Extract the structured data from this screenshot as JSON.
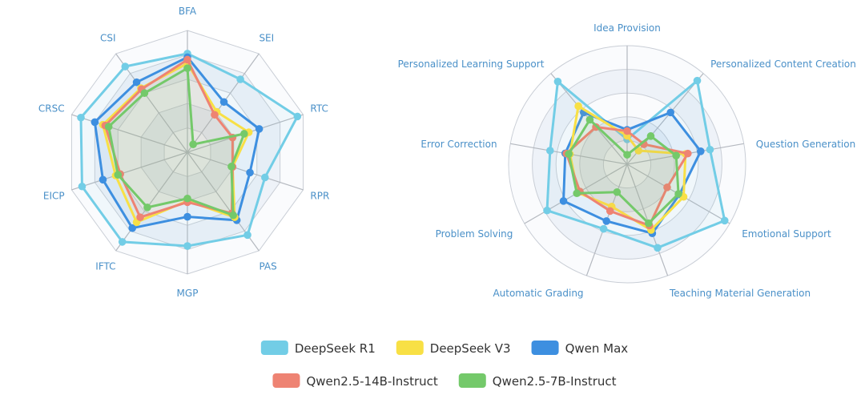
{
  "legend": [
    {
      "name": "DeepSeek R1",
      "color": "#72cde6"
    },
    {
      "name": "DeepSeek V3",
      "color": "#f8e045"
    },
    {
      "name": "Qwen Max",
      "color": "#3d8fe0"
    },
    {
      "name": "Qwen2.5-14B-Instruct",
      "color": "#ee8373"
    },
    {
      "name": "Qwen2.5-7B-Instruct",
      "color": "#74c96a"
    }
  ],
  "chart_data": [
    {
      "type": "radar",
      "axes": [
        "BFA",
        "SEI",
        "RTC",
        "RPR",
        "PAS",
        "MGP",
        "IFTC",
        "EICP",
        "CRSC",
        "CSI"
      ],
      "series": [
        {
          "name": "DeepSeek R1",
          "values": [
            0.81,
            0.74,
            0.95,
            0.67,
            0.84,
            0.77,
            0.91,
            0.91,
            0.92,
            0.87
          ]
        },
        {
          "name": "Qwen Max",
          "values": [
            0.78,
            0.51,
            0.62,
            0.54,
            0.69,
            0.53,
            0.77,
            0.73,
            0.8,
            0.71
          ]
        },
        {
          "name": "DeepSeek V3",
          "values": [
            0.73,
            0.41,
            0.53,
            0.39,
            0.66,
            0.4,
            0.71,
            0.62,
            0.73,
            0.65
          ]
        },
        {
          "name": "Qwen2.5-14B-Instruct",
          "values": [
            0.76,
            0.38,
            0.39,
            0.39,
            0.62,
            0.41,
            0.66,
            0.58,
            0.71,
            0.64
          ]
        },
        {
          "name": "Qwen2.5-7B-Instruct",
          "values": [
            0.69,
            0.08,
            0.49,
            0.38,
            0.64,
            0.38,
            0.56,
            0.6,
            0.68,
            0.6
          ]
        }
      ],
      "range": [
        0,
        1
      ],
      "rings": 5
    },
    {
      "type": "radar",
      "axes": [
        "Idea Provision",
        "Personalized Content Creation",
        "Question Generation",
        "Emotional Support",
        "Teaching Material Generation",
        "Automatic Grading",
        "Problem Solving",
        "Error Correction",
        "Personalized Learning Support"
      ],
      "series": [
        {
          "name": "DeepSeek R1",
          "values": [
            0.21,
            0.92,
            0.71,
            0.95,
            0.75,
            0.58,
            0.78,
            0.66,
            0.91
          ]
        },
        {
          "name": "Qwen Max",
          "values": [
            0.29,
            0.57,
            0.63,
            0.51,
            0.62,
            0.51,
            0.62,
            0.53,
            0.57
          ]
        },
        {
          "name": "DeepSeek V3",
          "values": [
            0.24,
            0.15,
            0.5,
            0.55,
            0.59,
            0.38,
            0.48,
            0.49,
            0.64
          ]
        },
        {
          "name": "Qwen2.5-14B-Instruct",
          "values": [
            0.28,
            0.22,
            0.52,
            0.39,
            0.55,
            0.42,
            0.46,
            0.52,
            0.41
          ]
        },
        {
          "name": "Qwen2.5-7B-Instruct",
          "values": [
            0.08,
            0.31,
            0.42,
            0.5,
            0.53,
            0.25,
            0.49,
            0.5,
            0.49
          ]
        }
      ],
      "range": [
        0,
        1
      ],
      "rings": 5
    }
  ]
}
